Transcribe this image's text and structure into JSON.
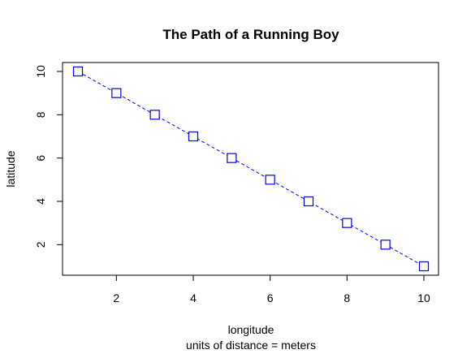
{
  "chart_data": {
    "type": "line",
    "title": "The Path of a Running Boy",
    "xlabel": "longitude",
    "sub": "units of distance = meters",
    "ylabel": "latitude",
    "x": [
      1,
      2,
      3,
      4,
      5,
      6,
      7,
      8,
      9,
      10
    ],
    "series": [
      {
        "values": [
          10,
          9,
          8,
          7,
          6,
          5,
          4,
          3,
          2,
          1
        ],
        "color": "#0000ff",
        "line_style": "dashed",
        "marker": "open-square"
      }
    ],
    "xlim": [
      1,
      10
    ],
    "ylim": [
      1,
      10
    ],
    "xticks": [
      2,
      4,
      6,
      8,
      10
    ],
    "yticks": [
      2,
      4,
      6,
      8,
      10
    ],
    "grid": false
  }
}
